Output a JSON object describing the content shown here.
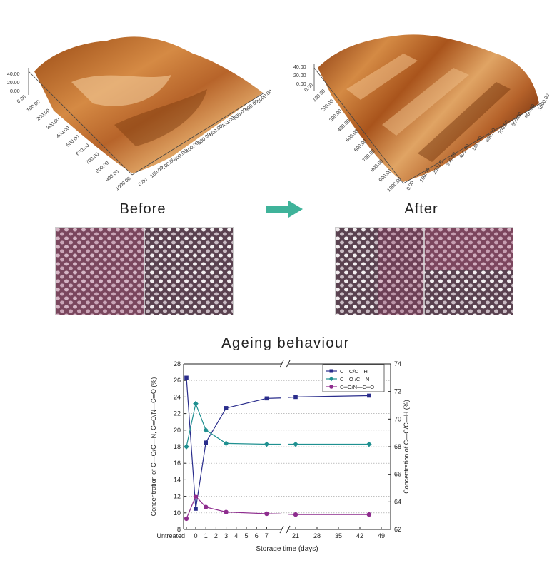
{
  "figure": {
    "before_label": "Before",
    "after_label": "After",
    "arrow_color": "#3fb39a",
    "afm_before_axis": {
      "z_ticks": [
        "40.00",
        "20.00",
        "0.00"
      ],
      "y_ticks": [
        "0.00",
        "100.00",
        "200.00",
        "300.00",
        "400.00",
        "500.00",
        "600.00",
        "700.00",
        "800.00",
        "900.00",
        "1000.00"
      ],
      "x_ticks": [
        "0.00",
        "100.00",
        "200.00",
        "300.00",
        "400.00",
        "500.00",
        "600.00",
        "700.00",
        "800.00",
        "900.00",
        "1000.00"
      ]
    },
    "afm_after_axis": {
      "z_ticks": [
        "40.00",
        "20.00",
        "0.00"
      ],
      "y_ticks": [
        "0.00",
        "100.00",
        "200.00",
        "300.00",
        "400.00",
        "500.00",
        "600.00",
        "700.00",
        "800.00",
        "900.00",
        "1000.00"
      ],
      "x_ticks": [
        "0.00",
        "100.00",
        "200.00",
        "300.00",
        "400.00",
        "500.00",
        "600.00",
        "700.00",
        "800.00",
        "900.00",
        "1000.00"
      ]
    }
  },
  "chart_data": {
    "type": "line",
    "title": "Ageing behaviour",
    "xlabel": "Storage time (days)",
    "ylabel_left": "Concentration of C—O/C—N, C═O/N—C═O  (%)",
    "ylabel_right": "Concentration of C—C/C—H  (%)",
    "x_tick_labels": [
      "Untreated",
      "0",
      "1",
      "2",
      "3",
      "4",
      "5",
      "6",
      "7",
      "21",
      "28",
      "35",
      "42",
      "49"
    ],
    "y_left_ticks": [
      8,
      10,
      12,
      14,
      16,
      18,
      20,
      22,
      24,
      26,
      28
    ],
    "y_right_ticks": [
      62,
      64,
      66,
      68,
      70,
      72,
      74
    ],
    "ylim_left": [
      8,
      28
    ],
    "ylim_right": [
      62,
      74
    ],
    "axis_break": "between 7 and 21",
    "grid": "horizontal dotted",
    "legend_position": "top-right",
    "x": [
      "Untreated",
      "0",
      "1",
      "3",
      "7",
      "21",
      "45"
    ],
    "series": [
      {
        "name": "C—C/C—H",
        "axis": "right",
        "color": "#2a2d8c",
        "marker": "square",
        "values": [
          73.0,
          63.5,
          68.3,
          70.8,
          71.5,
          71.6,
          71.7
        ]
      },
      {
        "name": "C—O /C—N",
        "axis": "left",
        "color": "#1f9090",
        "marker": "diamond",
        "values": [
          18.0,
          23.2,
          20.0,
          18.4,
          18.3,
          18.3,
          18.3
        ]
      },
      {
        "name": "C═O/N—C═O",
        "axis": "left",
        "color": "#8e2c8e",
        "marker": "circle",
        "values": [
          9.3,
          12.0,
          10.7,
          10.1,
          9.9,
          9.8,
          9.8
        ]
      }
    ]
  }
}
